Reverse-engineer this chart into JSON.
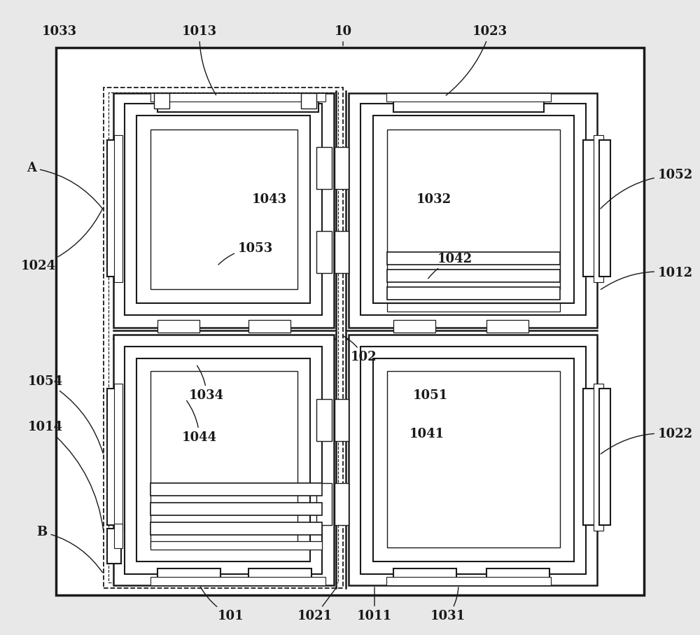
{
  "bg": "#e8e8e8",
  "lc": "#1a1a1a",
  "figsize": [
    10.0,
    9.07
  ],
  "dpi": 100
}
